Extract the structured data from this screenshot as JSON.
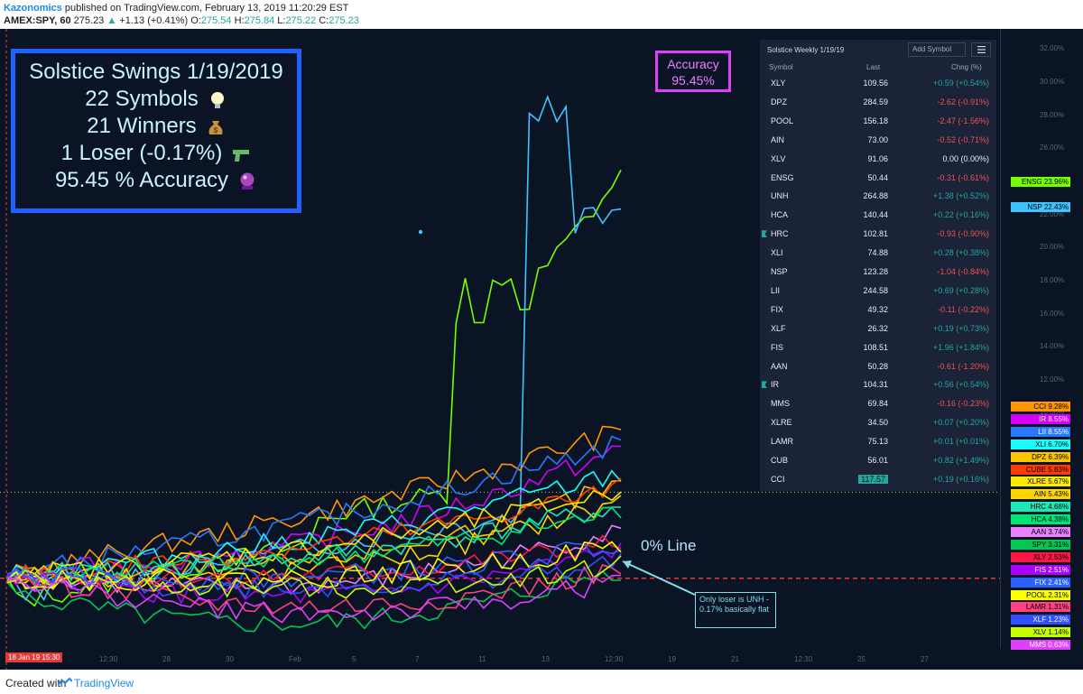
{
  "header": {
    "author": "Kazonomics",
    "published_text": "published on TradingView.com, February 13, 2019 11:20:29 EST",
    "symbol_line": {
      "symbol": "AMEX:SPY, 60",
      "price": "275.23",
      "change": "+1.13 (+0.41%)",
      "o_label": "O:",
      "o_val": "275.54",
      "h_label": "H:",
      "h_val": "275.84",
      "l_label": "L:",
      "l_val": "275.22",
      "c_label": "C:",
      "c_val": "275.23"
    }
  },
  "infobox": {
    "line1": "Solstice Swings 1/19/2019",
    "line2": "22 Symbols",
    "line3": "21 Winners",
    "line4": "1 Loser (-0.17%)",
    "line5": "95.45 % Accuracy",
    "icons": [
      "light-bulb-icon",
      "money-bag-icon",
      "water-pistol-icon",
      "crystal-ball-icon"
    ]
  },
  "accuracy_box": {
    "label": "Accuracy",
    "value": "95.45%"
  },
  "watchlist": {
    "title": "Solstice Weekly 1/19/19",
    "add_symbol": "Add Symbol",
    "col_symbol": "Symbol",
    "col_last": "Last",
    "col_change": "Chng (%)",
    "rows": [
      {
        "symbol": "XLY",
        "last": "109.56",
        "change": "+0.59 (+0.54%)",
        "dir": "up"
      },
      {
        "symbol": "DPZ",
        "last": "284.59",
        "change": "-2.62 (-0.91%)",
        "dir": "down"
      },
      {
        "symbol": "POOL",
        "last": "156.18",
        "change": "-2.47 (-1.56%)",
        "dir": "down"
      },
      {
        "symbol": "AIN",
        "last": "73.00",
        "change": "-0.52 (-0.71%)",
        "dir": "down"
      },
      {
        "symbol": "XLV",
        "last": "91.06",
        "change": "0.00 (0.00%)",
        "dir": "flat"
      },
      {
        "symbol": "ENSG",
        "last": "50.44",
        "change": "-0.31 (-0.61%)",
        "dir": "down"
      },
      {
        "symbol": "UNH",
        "last": "264.88",
        "change": "+1.38 (+0.52%)",
        "dir": "up"
      },
      {
        "symbol": "HCA",
        "last": "140.44",
        "change": "+0.22 (+0.16%)",
        "dir": "up"
      },
      {
        "symbol": "HRC",
        "last": "102.81",
        "change": "-0.93 (-0.90%)",
        "dir": "down",
        "flag": true
      },
      {
        "symbol": "XLI",
        "last": "74.88",
        "change": "+0.28 (+0.38%)",
        "dir": "up"
      },
      {
        "symbol": "NSP",
        "last": "123.28",
        "change": "-1.04 (-0.84%)",
        "dir": "down"
      },
      {
        "symbol": "LII",
        "last": "244.58",
        "change": "+0.69 (+0.28%)",
        "dir": "up"
      },
      {
        "symbol": "FIX",
        "last": "49.32",
        "change": "-0.11 (-0.22%)",
        "dir": "down"
      },
      {
        "symbol": "XLF",
        "last": "26.32",
        "change": "+0.19 (+0.73%)",
        "dir": "up"
      },
      {
        "symbol": "FIS",
        "last": "108.51",
        "change": "+1.96 (+1.84%)",
        "dir": "up"
      },
      {
        "symbol": "AAN",
        "last": "50.28",
        "change": "-0.61 (-1.20%)",
        "dir": "down"
      },
      {
        "symbol": "IR",
        "last": "104.31",
        "change": "+0.56 (+0.54%)",
        "dir": "up",
        "flag": true
      },
      {
        "symbol": "MMS",
        "last": "69.84",
        "change": "-0.16 (-0.23%)",
        "dir": "down"
      },
      {
        "symbol": "XLRE",
        "last": "34.50",
        "change": "+0.07 (+0.20%)",
        "dir": "up"
      },
      {
        "symbol": "LAMR",
        "last": "75.13",
        "change": "+0.01 (+0.01%)",
        "dir": "up"
      },
      {
        "symbol": "CUB",
        "last": "56.01",
        "change": "+0.82 (+1.49%)",
        "dir": "up"
      },
      {
        "symbol": "CCI",
        "last": "117.57",
        "change": "+0.19 (+0.16%)",
        "dir": "up",
        "highlight": true
      }
    ]
  },
  "zero_line_label": "0% Line",
  "annotation": "Only loser is UNH - 0.17% basically flat",
  "date_label": "18 Jan 19   15:30",
  "footer": {
    "created_with": "Created with",
    "brand": "TradingView"
  },
  "colors": {
    "background": "#0b1425",
    "up": "#26a69a",
    "down": "#ef5350",
    "zero_line": "#e53935"
  },
  "chart_data": {
    "type": "line",
    "x": [
      "18 Jan 19 15:30",
      "12:30",
      "28",
      "30",
      "Feb",
      "5",
      "7",
      "11",
      "13",
      "12:30",
      "19",
      "21",
      "12:30",
      "25",
      "27"
    ],
    "y_unit": "%",
    "y_axis_ticks": [
      "32.00%",
      "30.00%",
      "28.00%",
      "26.00%",
      "24.00%",
      "22.00%",
      "20.00%",
      "18.00%",
      "16.00%",
      "14.00%",
      "12.00%",
      "10.00%"
    ],
    "ylim": [
      -4,
      33
    ],
    "zero_line": 0,
    "series": [
      {
        "name": "ENSG",
        "value": 23.96,
        "label": "23.96%",
        "color": "#76ff03"
      },
      {
        "name": "NSP",
        "value": 22.43,
        "label": "22.43%",
        "color": "#40c4ff"
      },
      {
        "name": "CCI",
        "value": 9.28,
        "label": "9.28%",
        "color": "#ff9800"
      },
      {
        "name": "IR",
        "value": 8.55,
        "label": "8.55%",
        "color": "#d500f9"
      },
      {
        "name": "LII",
        "value": 8.55,
        "label": "8.55%",
        "color": "#2979ff"
      },
      {
        "name": "XLI",
        "value": 6.7,
        "label": "6.70%",
        "color": "#18ffff"
      },
      {
        "name": "DPZ",
        "value": 6.39,
        "label": "6.39%",
        "color": "#ffc400"
      },
      {
        "name": "CUBE",
        "value": 5.83,
        "label": "5.83%",
        "color": "#ff3d00"
      },
      {
        "name": "XLRE",
        "value": 5.67,
        "label": "5.67%",
        "color": "#ffea00"
      },
      {
        "name": "AIN",
        "value": 5.43,
        "label": "5.43%",
        "color": "#ffd600"
      },
      {
        "name": "HRC",
        "value": 4.68,
        "label": "4.68%",
        "color": "#1de9b6"
      },
      {
        "name": "HCA",
        "value": 4.38,
        "label": "4.38%",
        "color": "#00e676"
      },
      {
        "name": "AAN",
        "value": 3.74,
        "label": "3.74%",
        "color": "#ea80fc"
      },
      {
        "name": "SPY",
        "value": 3.31,
        "label": "3.31%",
        "color": "#00c853"
      },
      {
        "name": "XLY",
        "value": 2.53,
        "label": "2.53%",
        "color": "#ff1744"
      },
      {
        "name": "FIS",
        "value": 2.51,
        "label": "2.51%",
        "color": "#aa00ff"
      },
      {
        "name": "FIX",
        "value": 2.41,
        "label": "2.41%",
        "color": "#2962ff"
      },
      {
        "name": "POOL",
        "value": 2.31,
        "label": "2.31%",
        "color": "#ffff00"
      },
      {
        "name": "LAMR",
        "value": 1.31,
        "label": "1.31%",
        "color": "#ff4081"
      },
      {
        "name": "XLF",
        "value": 1.23,
        "label": "1.23%",
        "color": "#304ffe"
      },
      {
        "name": "XLV",
        "value": 1.14,
        "label": "1.14%",
        "color": "#c6ff00"
      },
      {
        "name": "MMS",
        "value": 0.63,
        "label": "0.63%",
        "color": "#e040fb"
      }
    ]
  }
}
